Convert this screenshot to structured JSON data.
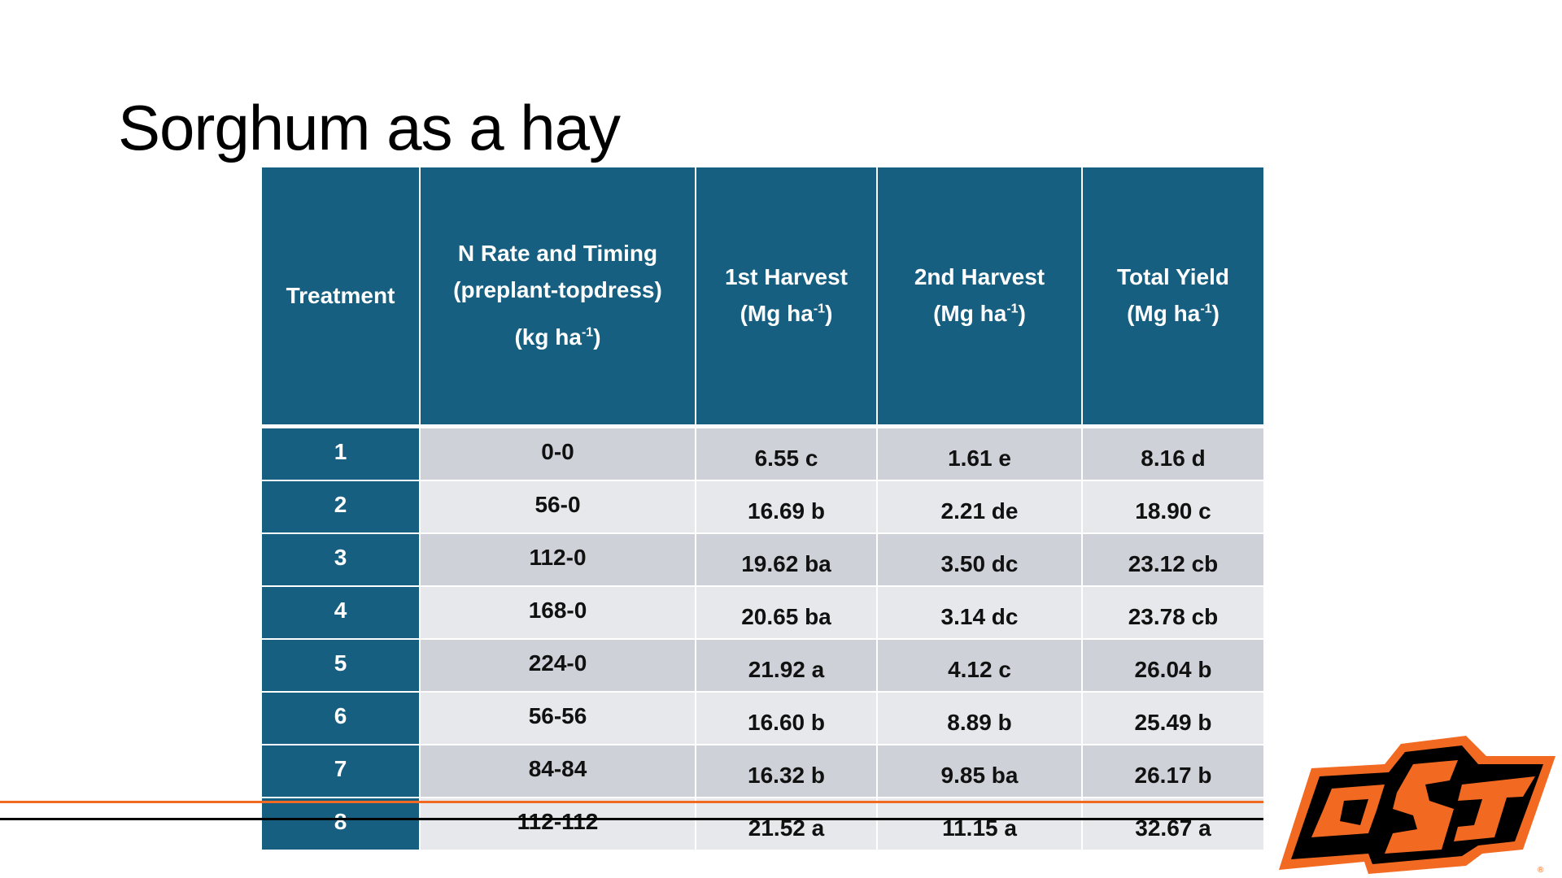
{
  "title": "Sorghum as a hay",
  "table": {
    "headers": {
      "treatment": "Treatment",
      "n_rate_line1": "N Rate and Timing",
      "n_rate_line2": "(preplant-topdress)",
      "n_rate_unit": "(kg ha",
      "first": "1st Harvest",
      "second": "2nd Harvest",
      "total": "Total Yield",
      "unit": "(Mg ha",
      "exp": "-1",
      "close": ")"
    },
    "rows": [
      {
        "t": "1",
        "n": "0-0",
        "h1": "6.55 c",
        "h2": "1.61 e",
        "tot": "8.16 d"
      },
      {
        "t": "2",
        "n": "56-0",
        "h1": "16.69 b",
        "h2": "2.21 de",
        "tot": "18.90 c"
      },
      {
        "t": "3",
        "n": "112-0",
        "h1": "19.62 ba",
        "h2": "3.50 dc",
        "tot": "23.12 cb"
      },
      {
        "t": "4",
        "n": "168-0",
        "h1": "20.65 ba",
        "h2": "3.14 dc",
        "tot": "23.78 cb"
      },
      {
        "t": "5",
        "n": "224-0",
        "h1": "21.92 a",
        "h2": "4.12 c",
        "tot": "26.04 b"
      },
      {
        "t": "6",
        "n": "56-56",
        "h1": "16.60 b",
        "h2": "8.89 b",
        "tot": "25.49 b"
      },
      {
        "t": "7",
        "n": "84-84",
        "h1": "16.32 b",
        "h2": "9.85 ba",
        "tot": "26.17 b"
      },
      {
        "t": "8",
        "n": "112-112",
        "h1": "21.52 a",
        "h2": "11.15 a",
        "tot": "32.67 a"
      }
    ]
  },
  "logo": {
    "text": "OSU",
    "colors": {
      "orange": "#f26a21",
      "black": "#000000"
    }
  }
}
